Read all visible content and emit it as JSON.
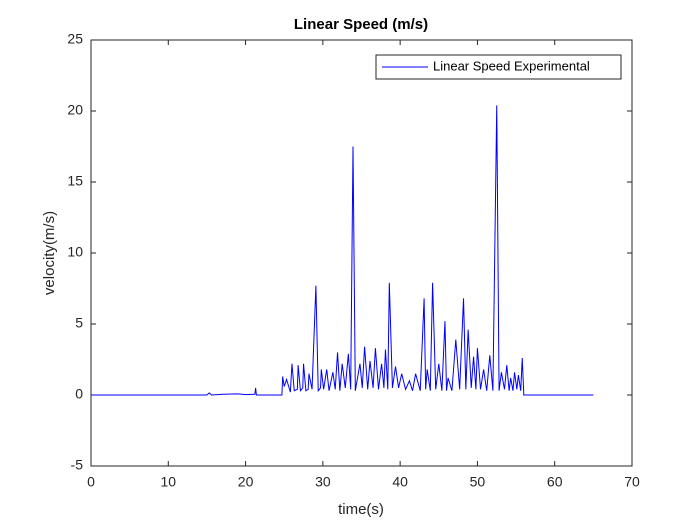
{
  "chart_data": {
    "type": "line",
    "title": "Linear Speed (m/s)",
    "xlabel": "time(s)",
    "ylabel": "velocity(m/s)",
    "x": [
      0,
      15,
      15.3,
      15.6,
      17,
      19,
      20,
      21.2,
      21.3,
      21.4,
      24.7,
      24.8,
      25,
      25.3,
      25.8,
      26,
      26.3,
      26.7,
      26.8,
      27.1,
      27.4,
      27.5,
      27.8,
      28.1,
      28.2,
      28.6,
      29.1,
      29.4,
      29.7,
      29.8,
      30.1,
      30.5,
      30.8,
      31.3,
      31.6,
      31.9,
      32.2,
      32.5,
      32.9,
      33.3,
      33.6,
      33.9,
      34.2,
      34.8,
      35.1,
      35.4,
      35.8,
      36.1,
      36.5,
      36.8,
      37.2,
      37.6,
      37.9,
      38.1,
      38.4,
      38.6,
      39,
      39.4,
      39.8,
      40.2,
      40.7,
      41.2,
      41.6,
      42,
      42.6,
      43.1,
      43.3,
      43.5,
      43.9,
      44.2,
      44.6,
      45,
      45.4,
      45.8,
      46,
      46.2,
      46.7,
      47.2,
      47.7,
      48.2,
      48.5,
      48.8,
      49.2,
      49.5,
      49.8,
      50,
      50.4,
      50.8,
      51.2,
      51.6,
      52,
      52.5,
      52.8,
      53.1,
      53.5,
      53.8,
      54.1,
      54.3,
      54.6,
      54.8,
      55.1,
      55.3,
      55.6,
      55.8,
      56,
      65
    ],
    "series": [
      {
        "name": "Linear Speed Experimental",
        "color": "#0000ff",
        "values": [
          0,
          0,
          0.15,
          0,
          0.05,
          0.08,
          0.03,
          0.05,
          0.5,
          0,
          0,
          1.3,
          0.6,
          1.1,
          0.2,
          2.2,
          0.3,
          0.4,
          2.1,
          0.3,
          0.5,
          2.2,
          0.3,
          0.4,
          1.5,
          0.4,
          7.7,
          0.3,
          0.5,
          1.8,
          0.4,
          1.8,
          0.3,
          1.6,
          0.4,
          3.0,
          0.3,
          2.2,
          0.5,
          2.9,
          0.4,
          17.5,
          0.3,
          2.2,
          0.5,
          3.4,
          0.4,
          2.4,
          0.5,
          3.3,
          0.4,
          2.2,
          0.5,
          3.2,
          0.4,
          7.9,
          0.5,
          2.0,
          0.5,
          1.5,
          0.4,
          1.0,
          0.3,
          1.5,
          0.3,
          6.8,
          0.4,
          1.8,
          0.3,
          7.9,
          0.4,
          2.2,
          0.3,
          5.2,
          0.3,
          1.2,
          0.3,
          3.9,
          0.4,
          6.8,
          0.4,
          4.6,
          0.5,
          2.7,
          0.4,
          3.3,
          0.4,
          1.8,
          0.3,
          2.8,
          0.3,
          20.4,
          0.3,
          1.6,
          0.4,
          2.1,
          0.3,
          1.2,
          0.3,
          1.6,
          0.4,
          1.4,
          0.3,
          2.6,
          0,
          0
        ]
      }
    ],
    "xlim": [
      0,
      70
    ],
    "xticks": [
      0,
      10,
      20,
      30,
      40,
      50,
      60,
      70
    ],
    "ylim": [
      -5,
      25
    ],
    "yticks": [
      -5,
      0,
      5,
      10,
      15,
      20,
      25
    ],
    "grid": false,
    "legend": "northeast"
  }
}
